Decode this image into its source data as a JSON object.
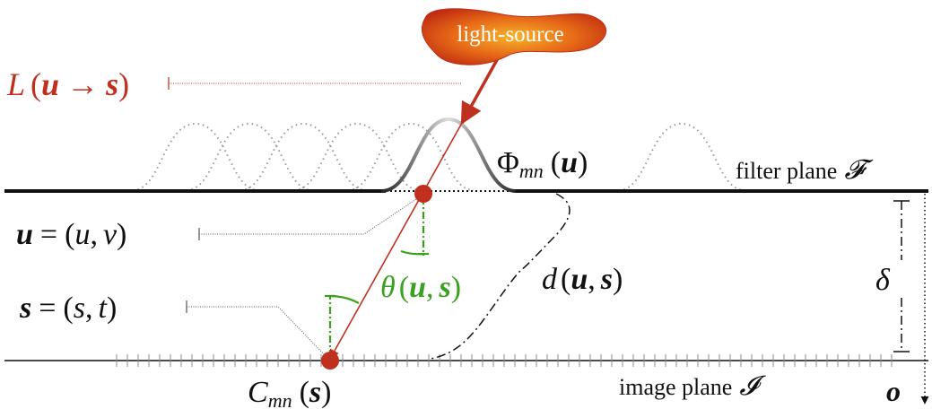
{
  "diagram": {
    "light_source": {
      "label": "light-source"
    },
    "light_path": {
      "L_func": "L",
      "L_open": "(",
      "L_u": "u",
      "L_arrow": "→",
      "L_s": "s",
      "L_close": ")"
    },
    "filter": {
      "phi": "Φ",
      "phi_sub": "mn",
      "phi_open": "(",
      "phi_u": "u",
      "phi_close": ")",
      "plane_label": "filter plane",
      "plane_symbol": "𝓕"
    },
    "point_u": {
      "lhs": "u",
      "eq": "=",
      "rhs_open": "(",
      "u1": "u",
      "comma": ",",
      "v1": "v",
      "rhs_close": ")"
    },
    "point_s": {
      "lhs": "s",
      "eq": "=",
      "rhs_open": "(",
      "s1": "s",
      "comma": ",",
      "t1": "t",
      "rhs_close": ")"
    },
    "angle": {
      "theta": "θ",
      "open": "(",
      "u": "u",
      "comma": ",",
      "s": "s",
      "close": ")"
    },
    "distance": {
      "d": "d",
      "open": "(",
      "u": "u",
      "comma": ",",
      "s": "s",
      "close": ")"
    },
    "separation": {
      "delta": "δ"
    },
    "image": {
      "C": "C",
      "C_sub": "mn",
      "C_open": "(",
      "C_s": "s",
      "C_close": ")",
      "plane_label": "image plane",
      "plane_symbol": "𝓘"
    },
    "origin": {
      "label": "o"
    },
    "colors": {
      "ray": "#c0301e",
      "angle": "#3aa020",
      "ink": "#111111",
      "leader": "#555555",
      "blob_inner": "#f3a623",
      "blob_outer": "#c9330f"
    }
  }
}
